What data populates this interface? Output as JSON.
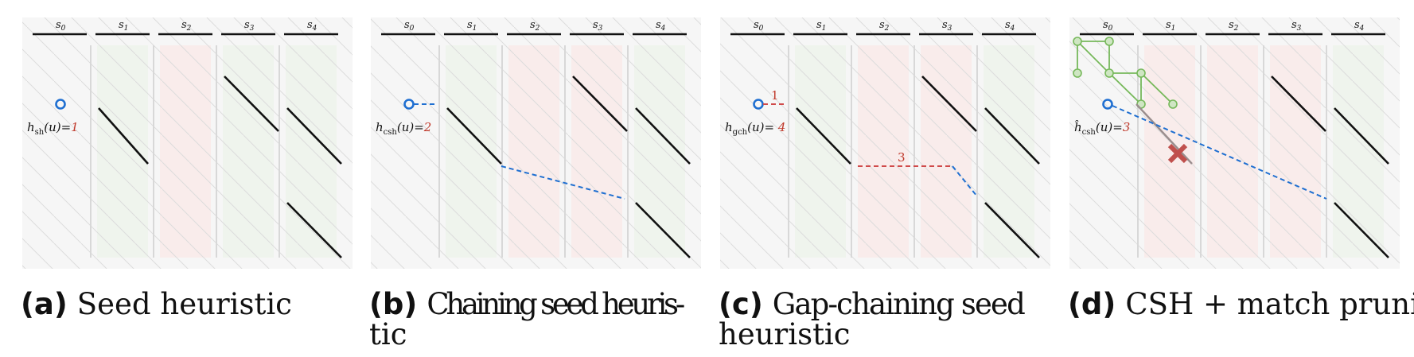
{
  "seed_labels": [
    "s0",
    "s1",
    "s2",
    "s3",
    "s4"
  ],
  "colors": {
    "match": "#111111",
    "chain": "#1f6fd1",
    "gap": "#d04a4a",
    "explored": "#76b85a",
    "green_col": "#eef4ec",
    "red_col": "#f9ebea",
    "grey_bg": "#f6f6f6"
  },
  "panels": [
    {
      "caption_letter": "(a)",
      "caption_lines": [
        "Seed heuristic"
      ],
      "heuristic": {
        "name": "h",
        "sub": "sh",
        "arg": "(u)=",
        "value": "1"
      },
      "column_colors": [
        "white",
        "green",
        "red",
        "green",
        "green"
      ]
    },
    {
      "caption_letter": "(b)",
      "caption_lines": [
        "Chaining seed heuris-",
        "tic"
      ],
      "heuristic": {
        "name": "h",
        "sub": "csh",
        "arg": "(u)=",
        "value": "2"
      },
      "column_colors": [
        "white",
        "green",
        "red",
        "red",
        "green"
      ]
    },
    {
      "caption_letter": "(c)",
      "caption_lines": [
        "Gap-chaining seed",
        "heuristic"
      ],
      "heuristic": {
        "name": "h",
        "sub": "gch",
        "arg": "(u)= ",
        "value": "4"
      },
      "column_colors": [
        "white",
        "green",
        "red",
        "red",
        "green"
      ],
      "gap_costs": [
        "1",
        "3"
      ]
    },
    {
      "caption_letter": "(d)",
      "caption_lines": [
        "CSH + match pruning"
      ],
      "heuristic": {
        "name": "ĥ",
        "sub": "csh",
        "arg": "(u)=",
        "value": "3"
      },
      "column_colors": [
        "white",
        "red",
        "red",
        "red",
        "green"
      ]
    }
  ]
}
